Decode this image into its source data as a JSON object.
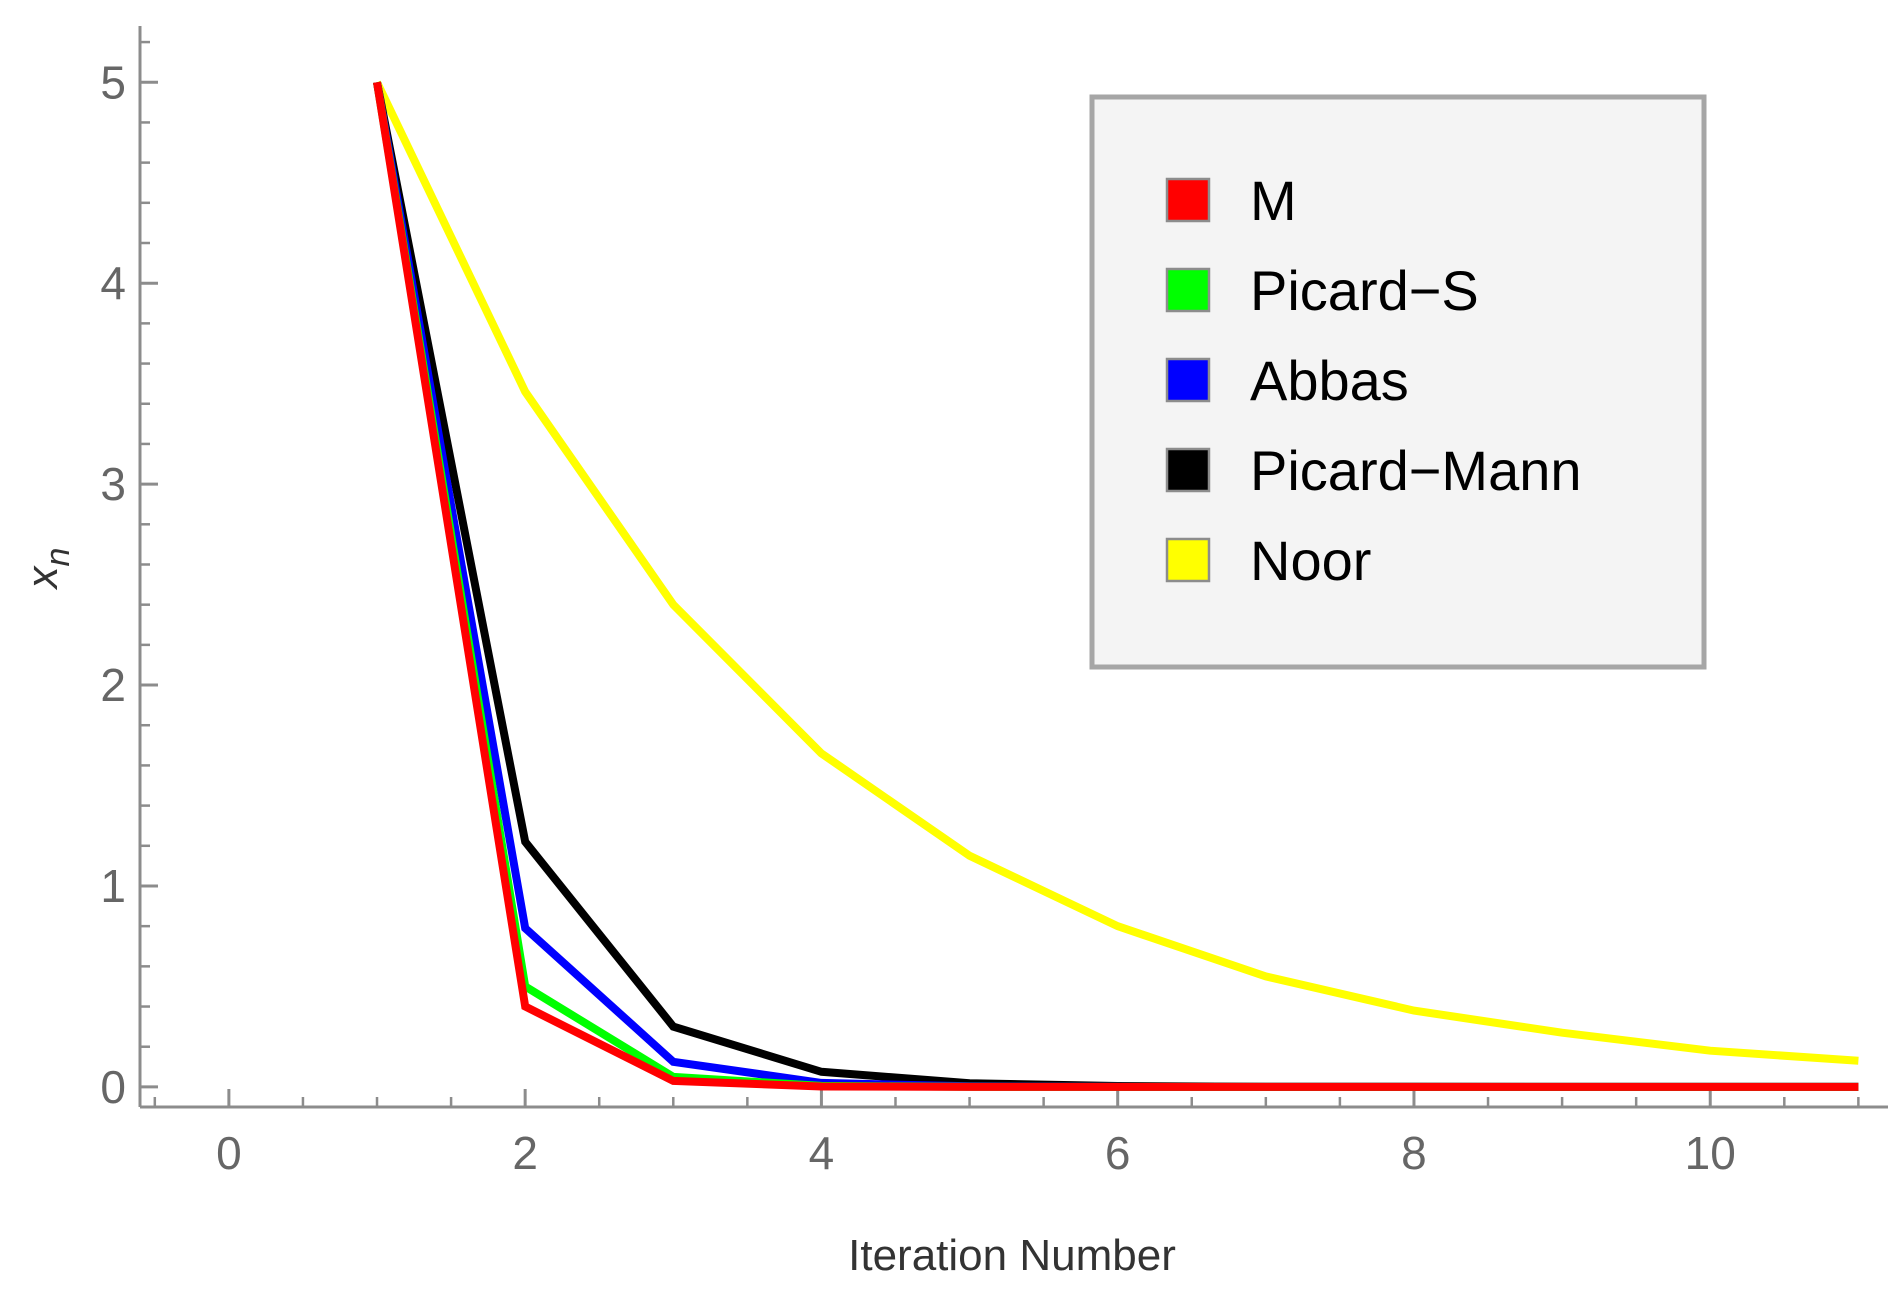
{
  "chart_data": {
    "type": "line",
    "title": "",
    "xlabel": "Iteration Number",
    "ylabel": "x",
    "ylabel_subscript": "n",
    "xlim": [
      -0.6,
      11.2
    ],
    "ylim": [
      -0.1,
      5.28
    ],
    "x_ticks": [
      0,
      2,
      4,
      6,
      8,
      10
    ],
    "y_ticks": [
      0,
      1,
      2,
      3,
      4,
      5
    ],
    "x_minor_step": 0.5,
    "y_minor_step": 0.2,
    "grid": false,
    "legend_position": "top-right",
    "x": [
      1,
      2,
      3,
      4,
      5,
      6,
      7,
      8,
      9,
      10,
      11
    ],
    "series": [
      {
        "name": "M",
        "color": "#ff0000",
        "values": [
          5,
          0.4,
          0.03,
          0.002,
          0.0002,
          0,
          0,
          0,
          0,
          0,
          0
        ]
      },
      {
        "name": "Picard−S",
        "color": "#00ff00",
        "values": [
          5,
          0.5,
          0.05,
          0.005,
          0.0005,
          0,
          0,
          0,
          0,
          0,
          0
        ]
      },
      {
        "name": "Abbas",
        "color": "#0000ff",
        "values": [
          5,
          0.79,
          0.125,
          0.02,
          0.003,
          0.0005,
          0,
          0,
          0,
          0,
          0
        ]
      },
      {
        "name": "Picard−Mann",
        "color": "#000000",
        "values": [
          5,
          1.22,
          0.3,
          0.075,
          0.018,
          0.0045,
          0.001,
          0.0003,
          0,
          0,
          0
        ]
      },
      {
        "name": "Noor",
        "color": "#ffff00",
        "values": [
          5,
          3.46,
          2.4,
          1.66,
          1.15,
          0.8,
          0.55,
          0.38,
          0.27,
          0.18,
          0.13
        ]
      }
    ]
  }
}
